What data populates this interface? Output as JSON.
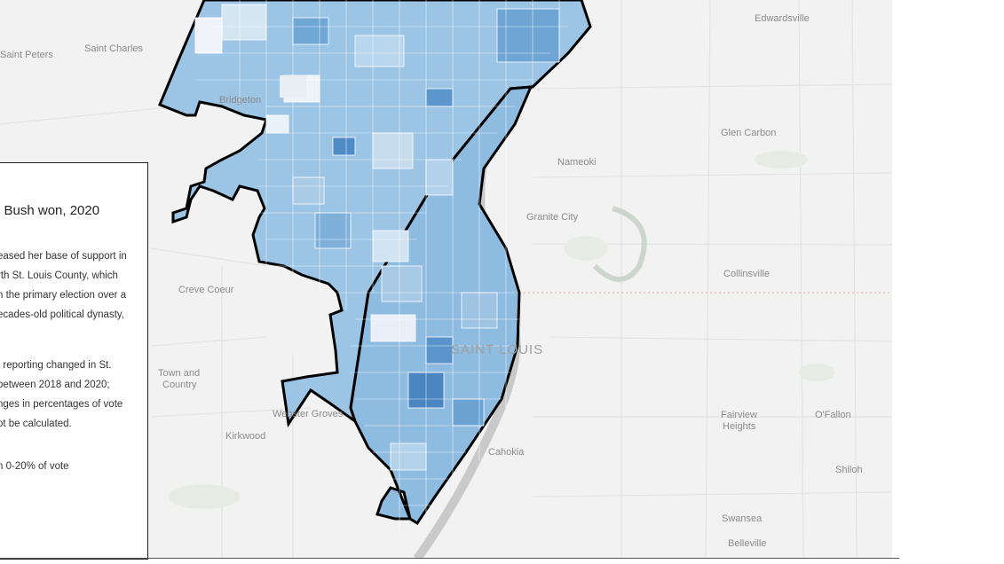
{
  "map": {
    "places": [
      {
        "name": "Edwardsville",
        "key": "edwardsville"
      },
      {
        "name": "Saint Charles",
        "key": "saint-charles"
      },
      {
        "name": "Saint Peters",
        "key": "saint-peters"
      },
      {
        "name": "Bridgeton",
        "key": "bridgeton"
      },
      {
        "name": "Glen Carbon",
        "key": "glen-carbon"
      },
      {
        "name": "Nameoki",
        "key": "nameoki"
      },
      {
        "name": "Granite City",
        "key": "granite-city"
      },
      {
        "name": "Collinsville",
        "key": "collinsville"
      },
      {
        "name": "Creve Coeur",
        "key": "creve-coeur"
      },
      {
        "name": "Town and",
        "key": "town-and-country-1"
      },
      {
        "name": "Country",
        "key": "town-and-country-2"
      },
      {
        "name": "Webster Groves",
        "key": "webster-groves"
      },
      {
        "name": "Kirkwood",
        "key": "kirkwood"
      },
      {
        "name": "SAINT LOUIS",
        "key": "saint-louis"
      },
      {
        "name": "Cahokia",
        "key": "cahokia"
      },
      {
        "name": "Fairview",
        "key": "fairview-heights-1"
      },
      {
        "name": "Heights",
        "key": "fairview-heights-2"
      },
      {
        "name": "O'Fallon",
        "key": "ofallon"
      },
      {
        "name": "Shiloh",
        "key": "shiloh"
      },
      {
        "name": "Swansea",
        "key": "swansea"
      },
      {
        "name": "Belleville",
        "key": "belleville"
      }
    ],
    "choropleth_color": "#4a90c8",
    "boundary_color": "#000000"
  },
  "legend": {
    "title": "l Bush won, 2020",
    "paragraph1": [
      "eased her base of support in",
      "rth St. Louis County, which",
      "n the primary election over a",
      "ecades-old political dynasty,"
    ],
    "paragraph2": [
      "t reporting changed in St.",
      "between 2018 and 2020;",
      "nges in percentages of vote",
      "ot be calculated."
    ],
    "key_label": "n 0-20% of vote"
  }
}
